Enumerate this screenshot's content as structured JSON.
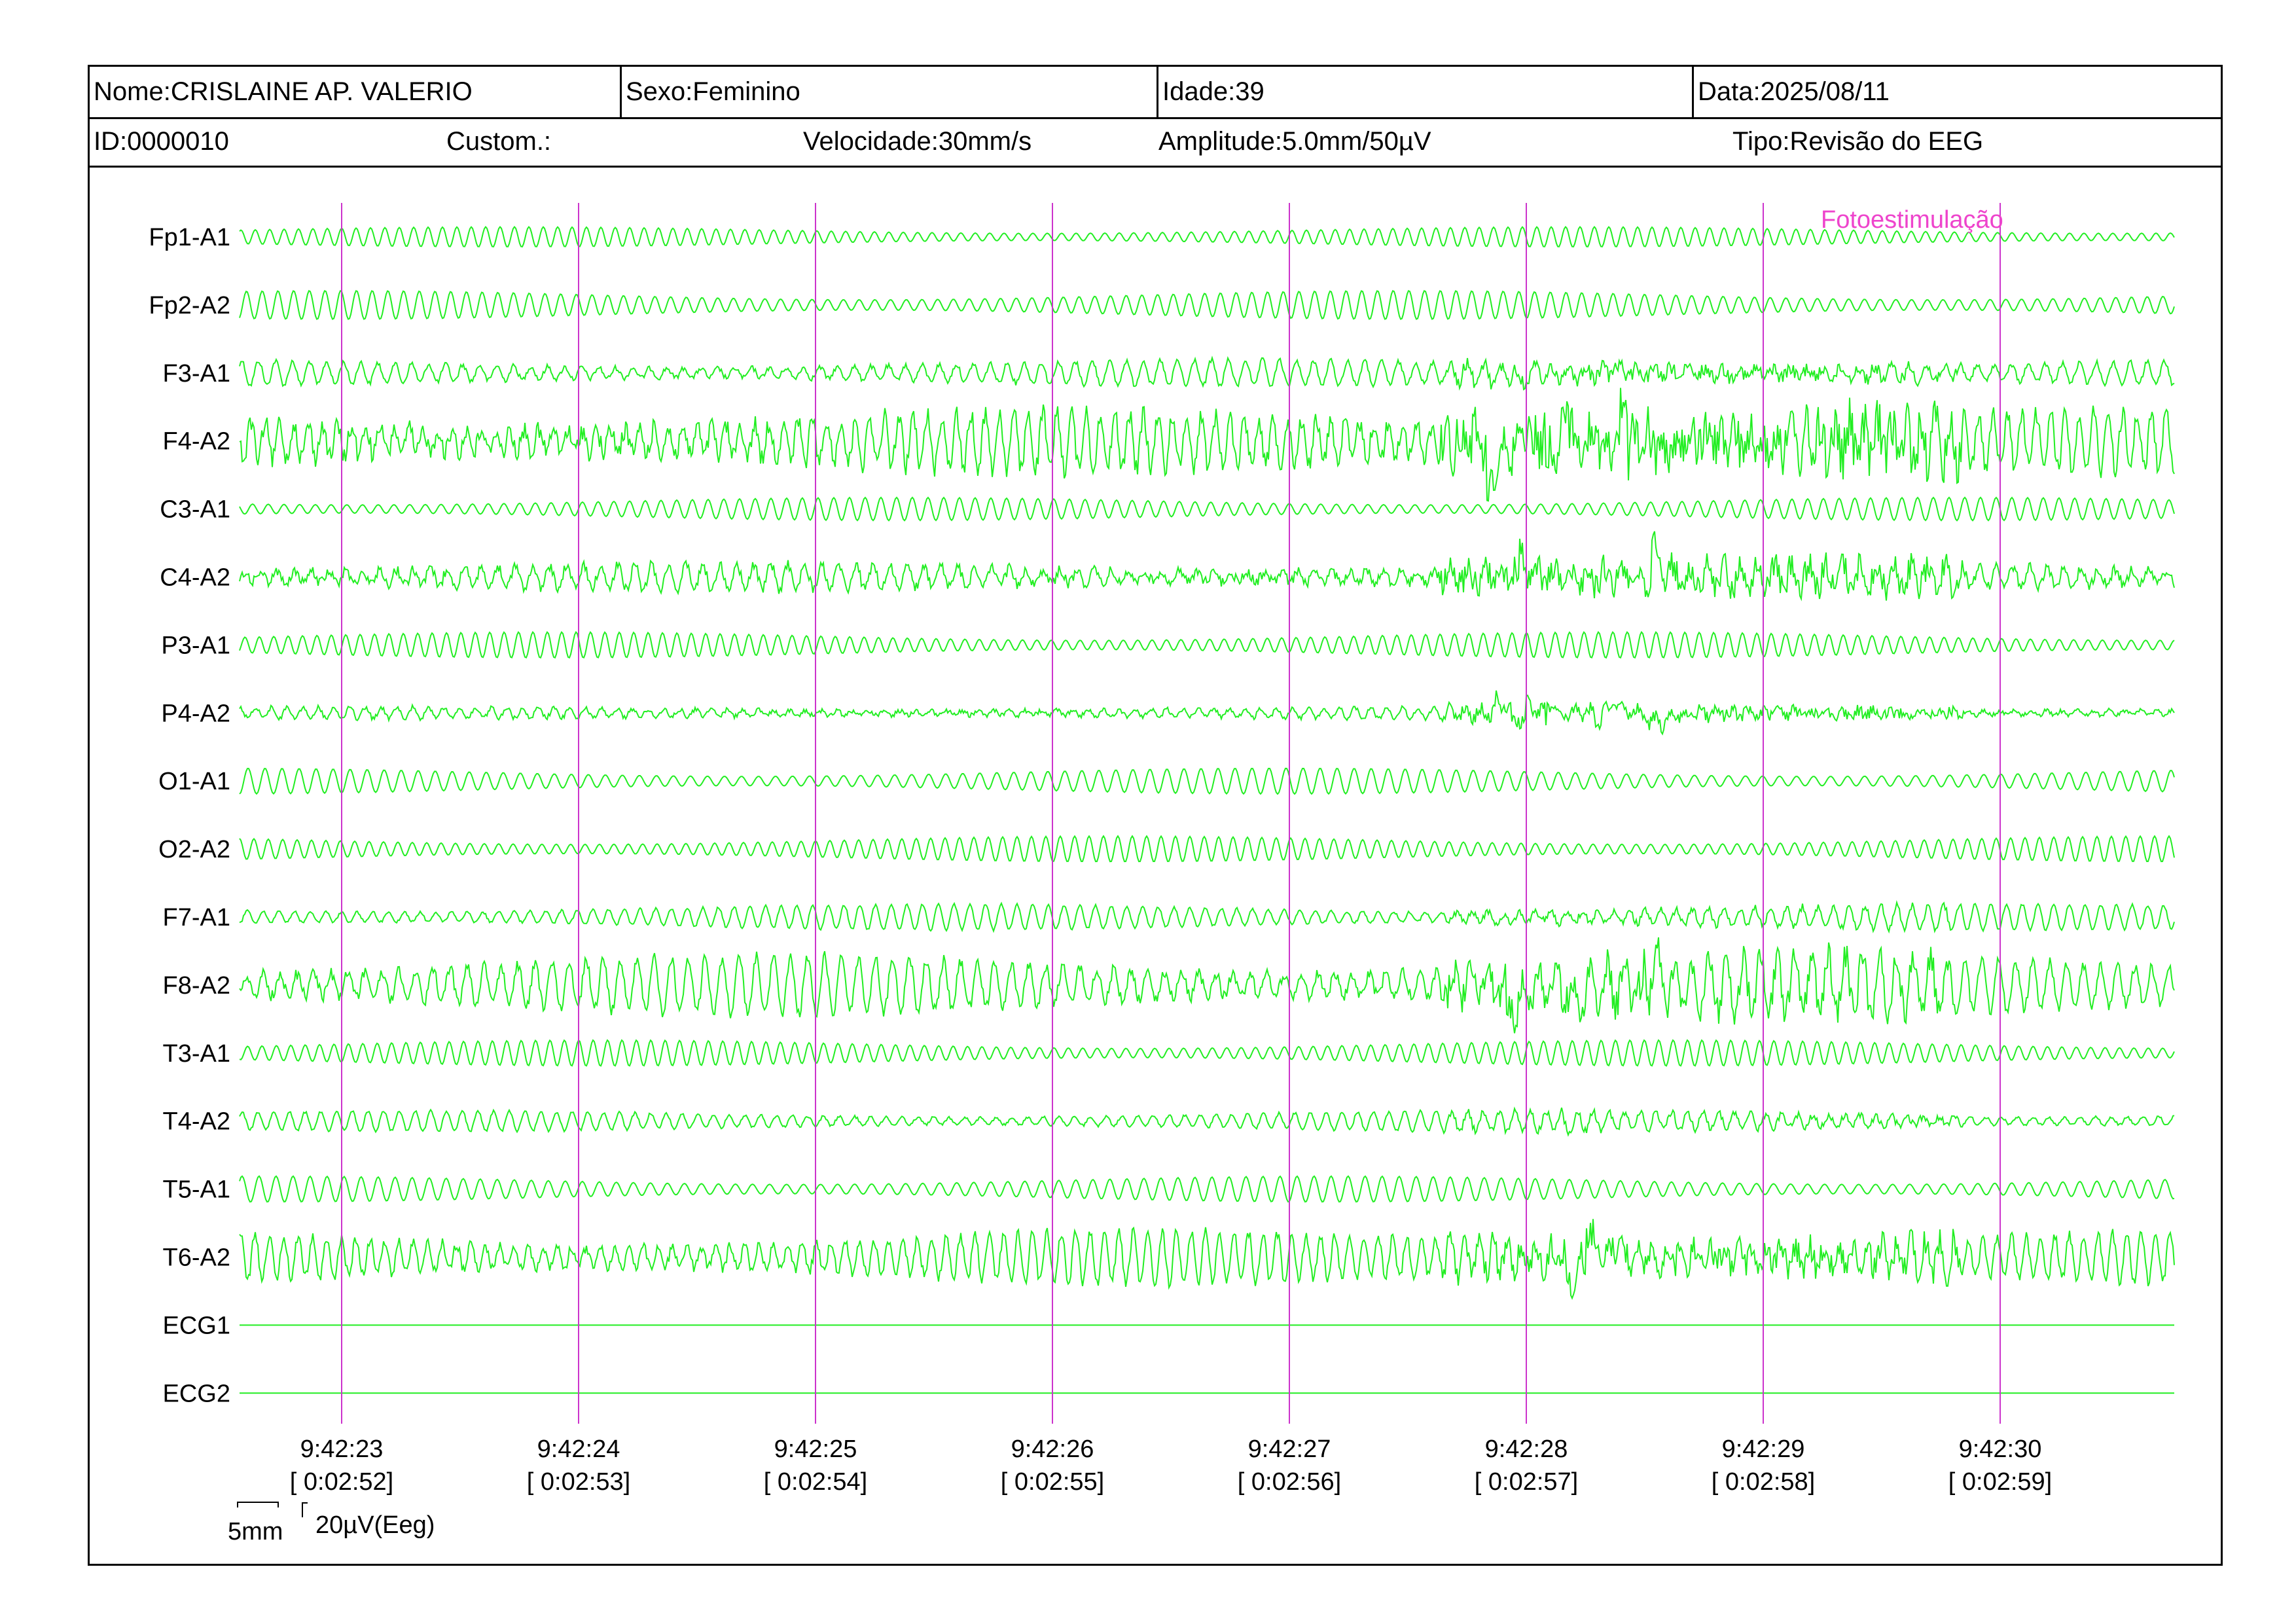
{
  "header": {
    "nome": "Nome:CRISLAINE AP. VALERIO",
    "sexo": "Sexo:Feminino",
    "idade": "Idade:39",
    "data": "Data:2025/08/11",
    "id": "ID:0000010",
    "custom": "Custom.:",
    "velocidade": "Velocidade:30mm/s",
    "amplitude": "Amplitude:5.0mm/50µV",
    "tipo": "Tipo:Revisão do EEG"
  },
  "colors": {
    "trace": "#22ee22",
    "marker": "#cc33cc",
    "annotation": "#ee44cc",
    "text": "#000000"
  },
  "chart_data": {
    "type": "line",
    "title": "",
    "channels": [
      "Fp1-A1",
      "Fp2-A2",
      "F3-A1",
      "F4-A2",
      "C3-A1",
      "C4-A2",
      "P3-A1",
      "P4-A2",
      "O1-A1",
      "O2-A2",
      "F7-A1",
      "F8-A2",
      "T3-A1",
      "T4-A2",
      "T5-A1",
      "T6-A2",
      "ECG1",
      "ECG2"
    ],
    "time_markers": [
      {
        "clock": "9:42:23",
        "elapsed": "[ 0:02:52]"
      },
      {
        "clock": "9:42:24",
        "elapsed": "[ 0:02:53]"
      },
      {
        "clock": "9:42:25",
        "elapsed": "[ 0:02:54]"
      },
      {
        "clock": "9:42:26",
        "elapsed": "[ 0:02:55]"
      },
      {
        "clock": "9:42:27",
        "elapsed": "[ 0:02:56]"
      },
      {
        "clock": "9:42:28",
        "elapsed": "[ 0:02:57]"
      },
      {
        "clock": "9:42:29",
        "elapsed": "[ 0:02:58]"
      },
      {
        "clock": "9:42:30",
        "elapsed": "[ 0:02:59]"
      }
    ],
    "annotation": "Fotoestimulação",
    "ecg_flat": true,
    "scale": {
      "time": "5mm",
      "amplitude": "20µV(Eeg)"
    }
  }
}
